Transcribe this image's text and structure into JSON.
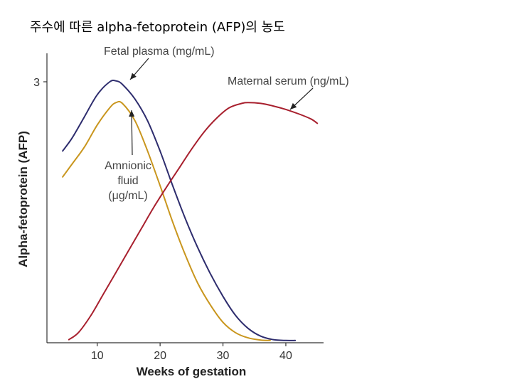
{
  "title": "주수에 따른 alpha-fetoprotein (AFP)의 농도",
  "chart_data": {
    "type": "line",
    "xlabel": "Weeks of gestation",
    "ylabel": "Alpha-fetoprotein (AFP)",
    "xlim": [
      2,
      46
    ],
    "ylim": [
      0,
      3.4
    ],
    "x_ticks": [
      10,
      20,
      30,
      40
    ],
    "y_ticks": [
      3
    ],
    "grid": false,
    "legend": "none",
    "series": [
      {
        "name": "Fetal plasma (mg/mL)",
        "color": "#2e2d6e",
        "points": [
          [
            4.5,
            2.2
          ],
          [
            6,
            2.35
          ],
          [
            8,
            2.6
          ],
          [
            10,
            2.85
          ],
          [
            12,
            3.0
          ],
          [
            13,
            3.01
          ],
          [
            14,
            2.97
          ],
          [
            16,
            2.8
          ],
          [
            18,
            2.55
          ],
          [
            20,
            2.2
          ],
          [
            22,
            1.8
          ],
          [
            24,
            1.42
          ],
          [
            26,
            1.08
          ],
          [
            28,
            0.78
          ],
          [
            30,
            0.52
          ],
          [
            32,
            0.3
          ],
          [
            34,
            0.15
          ],
          [
            36,
            0.06
          ],
          [
            38,
            0.02
          ],
          [
            40,
            0.01
          ],
          [
            41.5,
            0.01
          ]
        ]
      },
      {
        "name": "Amnionic fluid (μg/mL)",
        "color": "#c9961e",
        "points": [
          [
            4.5,
            1.9
          ],
          [
            6,
            2.05
          ],
          [
            8,
            2.25
          ],
          [
            10,
            2.5
          ],
          [
            12,
            2.7
          ],
          [
            13,
            2.76
          ],
          [
            14,
            2.75
          ],
          [
            16,
            2.55
          ],
          [
            18,
            2.2
          ],
          [
            20,
            1.8
          ],
          [
            22,
            1.38
          ],
          [
            24,
            1.0
          ],
          [
            26,
            0.67
          ],
          [
            28,
            0.42
          ],
          [
            30,
            0.22
          ],
          [
            32,
            0.1
          ],
          [
            34,
            0.04
          ],
          [
            36,
            0.015
          ],
          [
            37.5,
            0.01
          ]
        ]
      },
      {
        "name": "Maternal serum (ng/mL)",
        "color": "#a8202e",
        "points": [
          [
            5.5,
            0.02
          ],
          [
            7,
            0.1
          ],
          [
            9,
            0.3
          ],
          [
            11,
            0.55
          ],
          [
            13,
            0.8
          ],
          [
            15,
            1.05
          ],
          [
            17,
            1.3
          ],
          [
            19,
            1.55
          ],
          [
            21,
            1.78
          ],
          [
            23,
            2.0
          ],
          [
            25,
            2.22
          ],
          [
            27,
            2.42
          ],
          [
            29,
            2.58
          ],
          [
            31,
            2.7
          ],
          [
            33,
            2.75
          ],
          [
            34,
            2.76
          ],
          [
            36,
            2.75
          ],
          [
            38,
            2.72
          ],
          [
            40,
            2.68
          ],
          [
            42,
            2.63
          ],
          [
            44,
            2.57
          ],
          [
            45,
            2.52
          ]
        ]
      }
    ],
    "annotations": [
      {
        "lines": [
          "Fetal plasma (mg/mL)"
        ]
      },
      {
        "lines": [
          "Maternal serum (ng/mL)"
        ]
      },
      {
        "lines": [
          "Amnionic",
          "fluid",
          "(μg/mL)"
        ]
      }
    ]
  }
}
